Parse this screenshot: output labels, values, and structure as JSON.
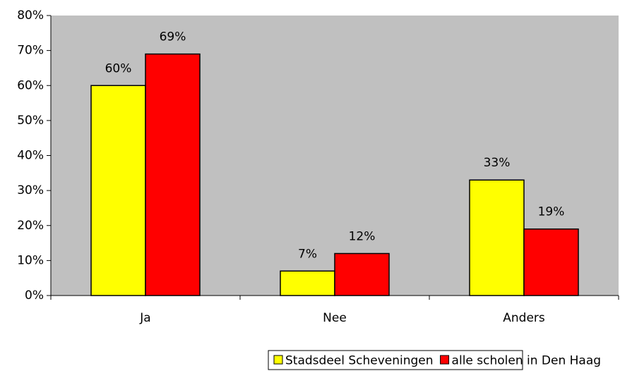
{
  "chart_data": {
    "type": "bar",
    "categories": [
      "Ja",
      "Nee",
      "Anders"
    ],
    "series": [
      {
        "name": "Stadsdeel Scheveningen",
        "color": "#ffff00",
        "values": [
          60,
          7,
          33
        ],
        "value_labels": [
          "60%",
          "7%",
          "33%"
        ]
      },
      {
        "name": "alle scholen in Den Haag",
        "color": "#ff0000",
        "values": [
          69,
          12,
          19
        ],
        "value_labels": [
          "69%",
          "12%",
          "19%"
        ]
      }
    ],
    "ylim": [
      0,
      80
    ],
    "yticks": [
      {
        "value": 0,
        "label": "0%"
      },
      {
        "value": 10,
        "label": "10%"
      },
      {
        "value": 20,
        "label": "20%"
      },
      {
        "value": 30,
        "label": "30%"
      },
      {
        "value": 40,
        "label": "40%"
      },
      {
        "value": 50,
        "label": "50%"
      },
      {
        "value": 60,
        "label": "60%"
      },
      {
        "value": 70,
        "label": "70%"
      },
      {
        "value": 80,
        "label": "80%"
      }
    ],
    "plot_background": "#c0c0c0",
    "legend": "bottom"
  }
}
